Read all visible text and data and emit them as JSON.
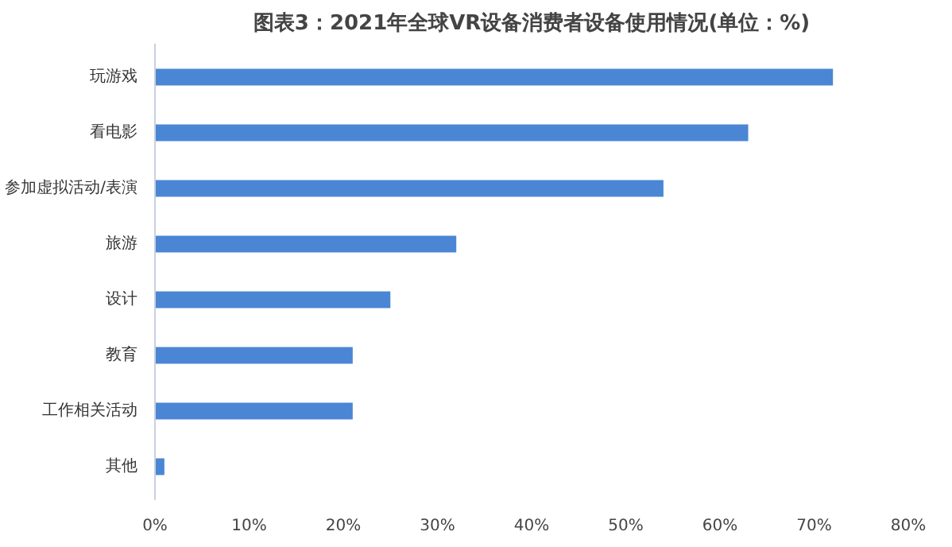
{
  "chart_data": {
    "type": "bar",
    "orientation": "horizontal",
    "title": "图表3：2021年全球VR设备消费者设备使用情况(单位：%)",
    "categories": [
      "玩游戏",
      "看电影",
      "参加虚拟活动/表演",
      "旅游",
      "设计",
      "教育",
      "工作相关活动",
      "其他"
    ],
    "values": [
      72,
      63,
      54,
      32,
      25,
      21,
      21,
      1
    ],
    "color": "#4a86d4",
    "xlim": [
      0,
      80
    ],
    "xticks": [
      {
        "value": 0,
        "label": "0%"
      },
      {
        "value": 10,
        "label": "10%"
      },
      {
        "value": 20,
        "label": "20%"
      },
      {
        "value": 30,
        "label": "30%"
      },
      {
        "value": 40,
        "label": "40%"
      },
      {
        "value": 50,
        "label": "50%"
      },
      {
        "value": 60,
        "label": "60%"
      },
      {
        "value": 70,
        "label": "70%"
      },
      {
        "value": 80,
        "label": "80%"
      }
    ],
    "grid": false
  }
}
